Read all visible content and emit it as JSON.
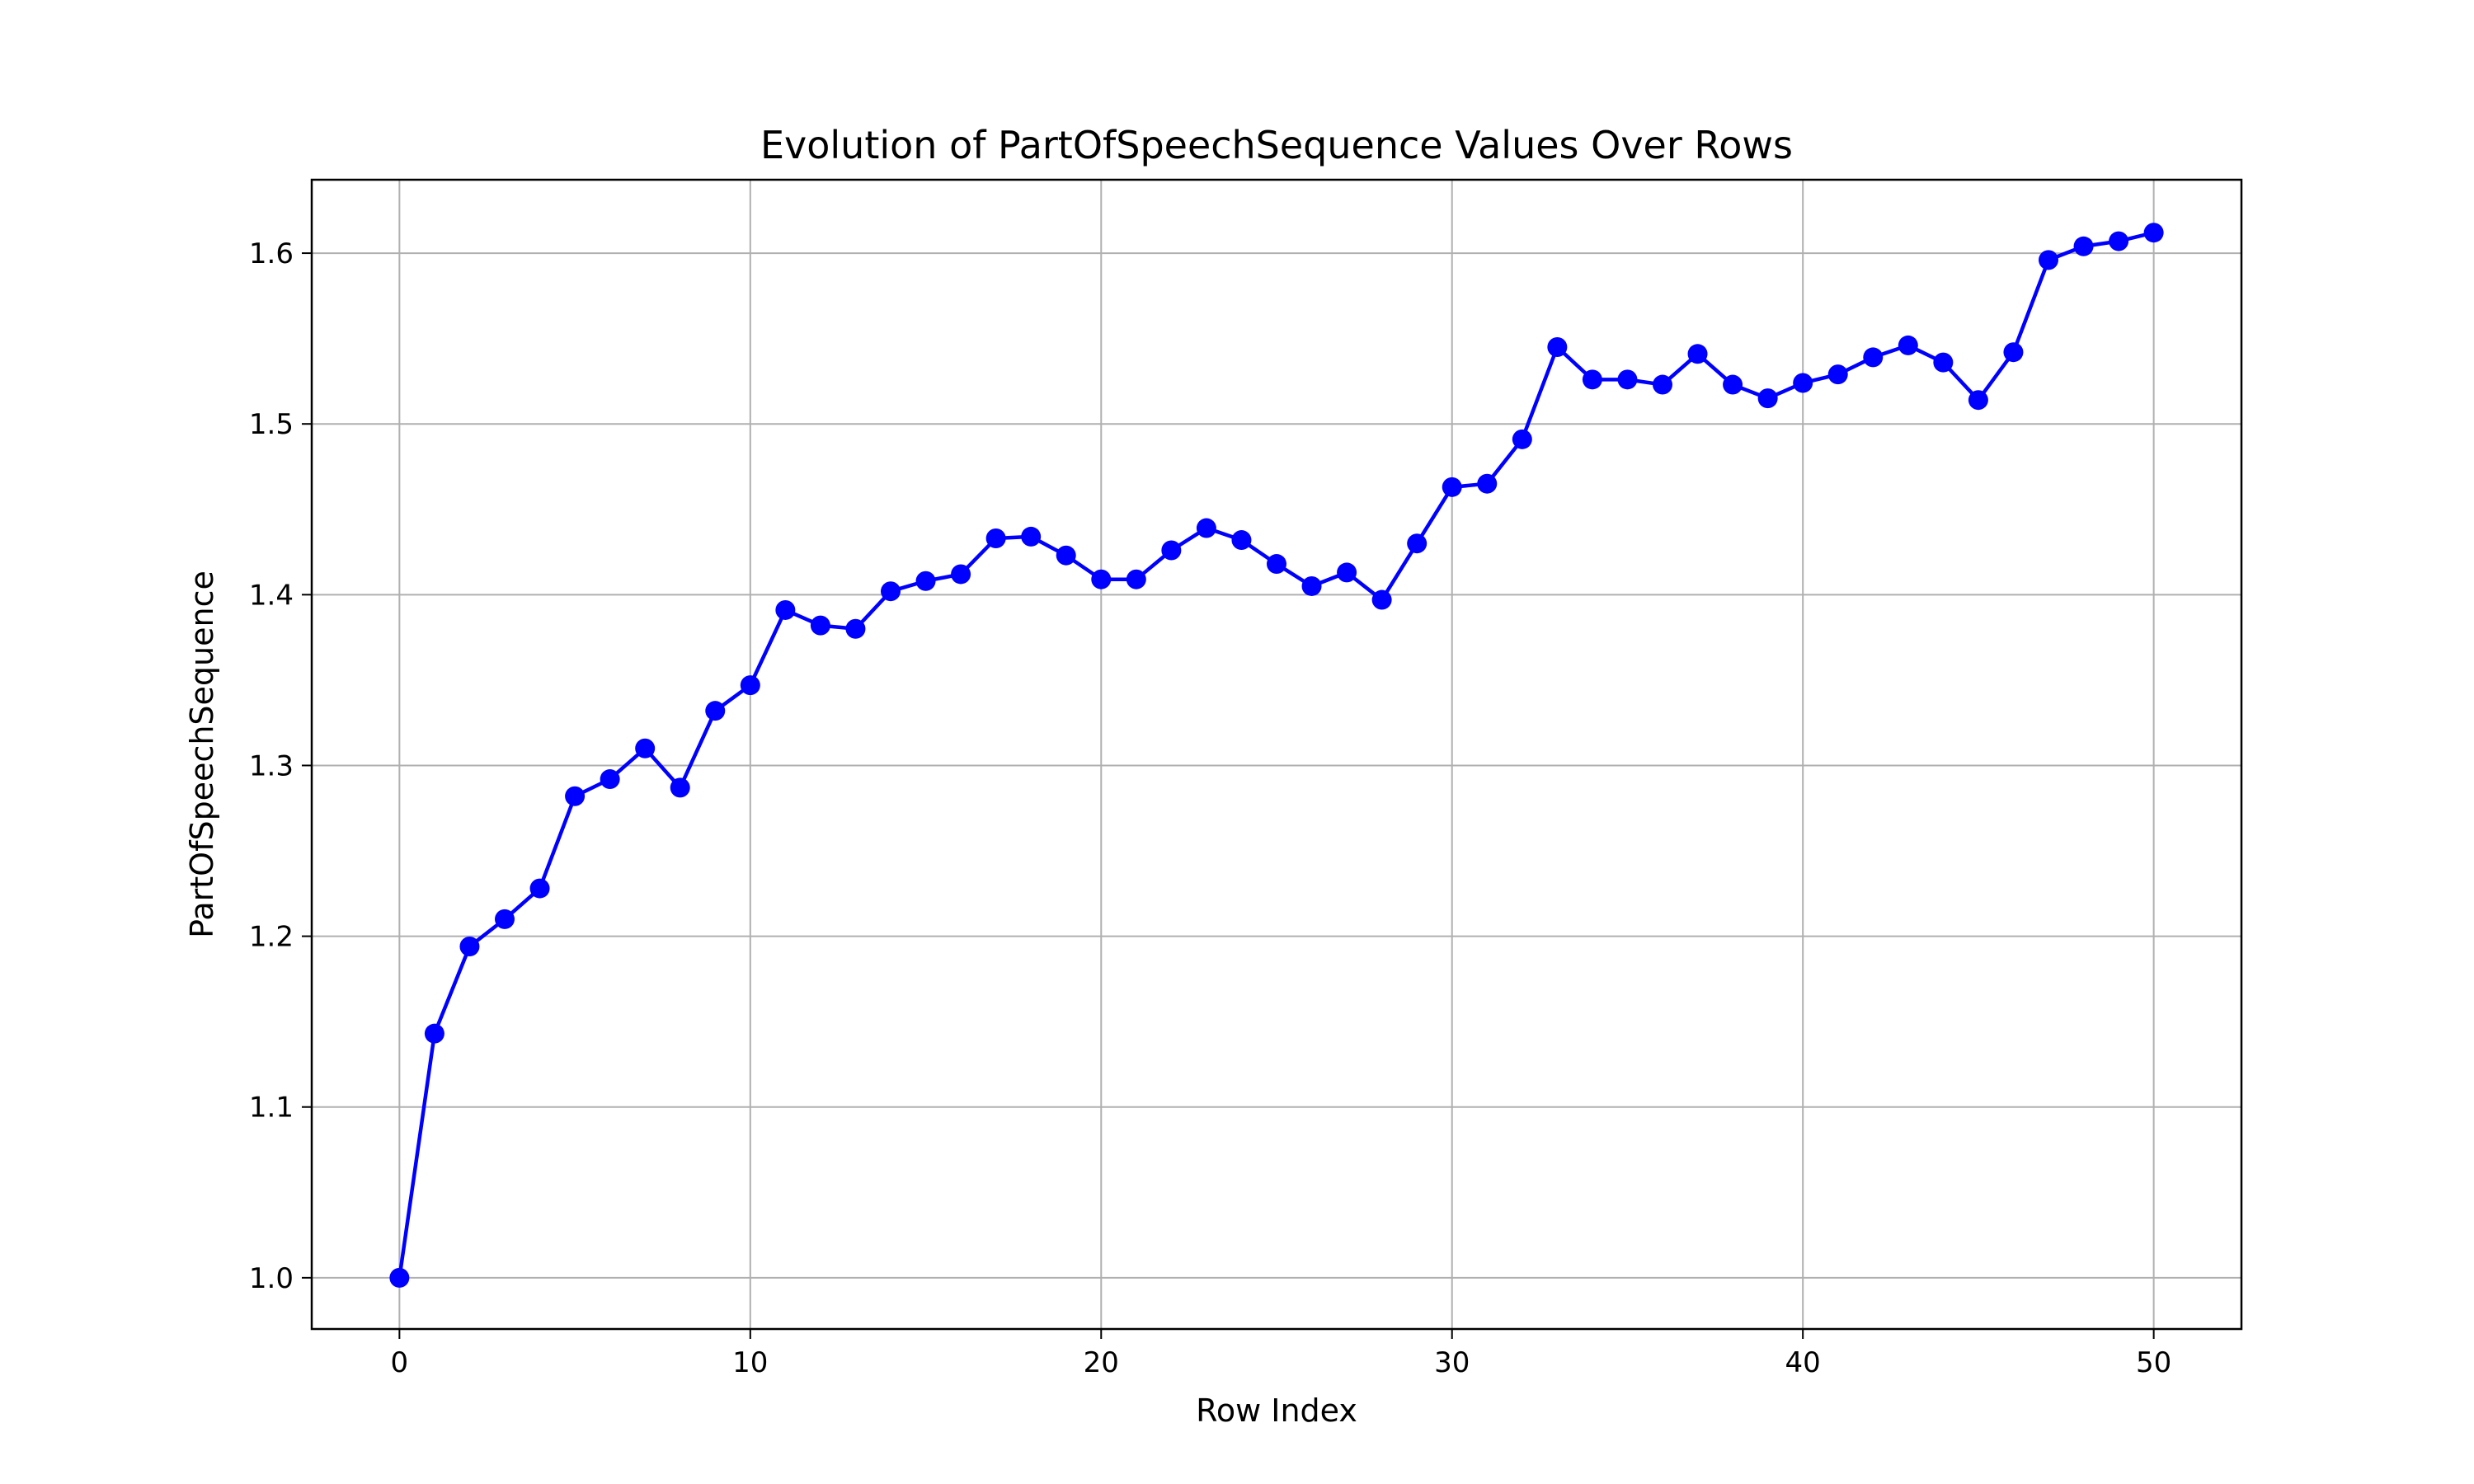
{
  "chart_data": {
    "type": "line",
    "title": "Evolution of PartOfSpeechSequence Values Over Rows",
    "xlabel": "Row Index",
    "ylabel": "PartOfSpeechSequence",
    "xlim": [
      -2.5,
      52.5
    ],
    "ylim": [
      0.97,
      1.643
    ],
    "xticks": [
      0,
      10,
      20,
      30,
      40,
      50
    ],
    "yticks": [
      1.0,
      1.1,
      1.2,
      1.3,
      1.4,
      1.5,
      1.6
    ],
    "grid": true,
    "marker": "circle",
    "colors": {
      "line": "#0000ff",
      "grid": "#b0b0b0",
      "axes": "#000000"
    },
    "series": [
      {
        "x": [
          0,
          1,
          2,
          3,
          4,
          5,
          6,
          7,
          8,
          9,
          10,
          11,
          12,
          13,
          14,
          15,
          16,
          17,
          18,
          19,
          20,
          21,
          22,
          23,
          24,
          25,
          26,
          27,
          28,
          29,
          30,
          31,
          32,
          33,
          34,
          35,
          36,
          37,
          38,
          39,
          40,
          41,
          42,
          43,
          44,
          45,
          46,
          47,
          48,
          49,
          50
        ],
        "values": [
          1.0,
          1.143,
          1.194,
          1.21,
          1.228,
          1.282,
          1.292,
          1.31,
          1.287,
          1.332,
          1.347,
          1.391,
          1.382,
          1.38,
          1.402,
          1.408,
          1.412,
          1.433,
          1.434,
          1.423,
          1.409,
          1.409,
          1.426,
          1.439,
          1.432,
          1.418,
          1.405,
          1.413,
          1.397,
          1.43,
          1.463,
          1.465,
          1.491,
          1.545,
          1.526,
          1.526,
          1.523,
          1.541,
          1.523,
          1.515,
          1.524,
          1.529,
          1.539,
          1.546,
          1.536,
          1.514,
          1.542,
          1.596,
          1.604,
          1.607,
          1.612
        ]
      }
    ]
  }
}
